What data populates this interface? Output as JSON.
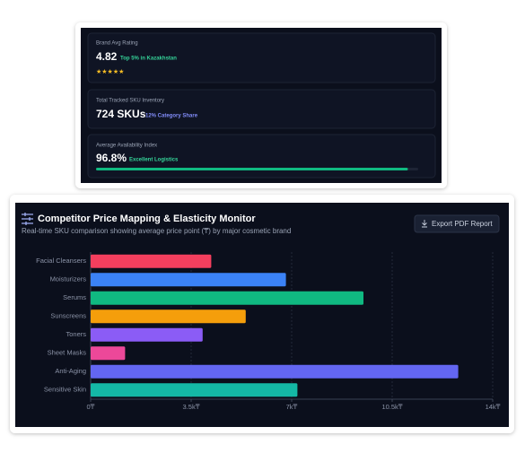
{
  "stats": [
    {
      "label": "Brand Avg Rating",
      "value": 4.82,
      "note": "Top 5% in Kazakhstan",
      "stars": "★★★★★"
    },
    {
      "label": "Total Tracked SKU Inventory",
      "value": "724 SKUs",
      "note": "12% Category Share"
    },
    {
      "label": "Average Availability Index",
      "value": 96.8,
      "value_label": "96.8%",
      "note": "Excellent Logistics"
    }
  ],
  "button": "Export PDF Report",
  "chart_data": {
    "type": "hbar",
    "title": "Competitor Price Mapping & Elasticity Monitor",
    "subtitle": "Real-time SKU comparison showing average price point (₸) by major cosmetic brand",
    "categories": [
      "Facial Cleansers",
      "Moisturizers",
      "Serums",
      "Sunscreens",
      "Toners",
      "Sheet Masks",
      "Anti-Aging",
      "Sensitive Skin"
    ],
    "values": [
      4200,
      6800,
      9500,
      5400,
      3900,
      1200,
      12800,
      7200
    ],
    "colors": [
      "#f43f5e",
      "#3b82f6",
      "#10b981",
      "#f59e0b",
      "#8b5cf6",
      "#ec4899",
      "#6366f1",
      "#14b8a6"
    ],
    "xlim": [
      0,
      14000
    ],
    "xticks": [
      {
        "value": 0,
        "label": "0₸"
      },
      {
        "value": 3500,
        "label": "3.5k₸"
      },
      {
        "value": 7000,
        "label": "7k₸"
      },
      {
        "value": 10500,
        "label": "10.5k₸"
      },
      {
        "value": 14000,
        "label": "14k₸"
      }
    ],
    "grid": true
  }
}
